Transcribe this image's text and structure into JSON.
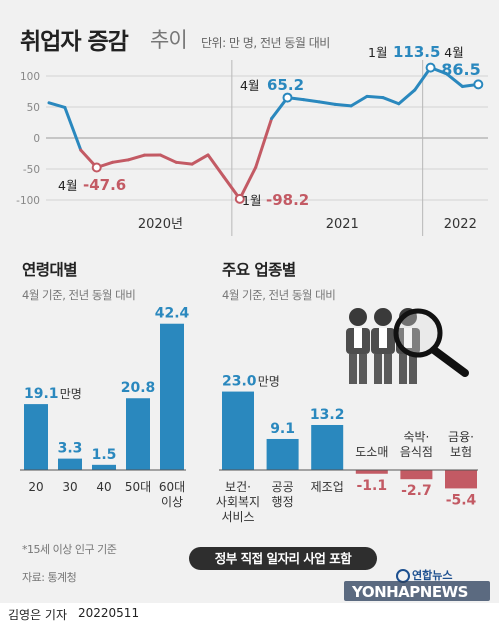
{
  "header": {
    "title": "취업자 증감",
    "title_sub": "추이",
    "unit": "단위: 만 명, 전년 동월 대비"
  },
  "colors": {
    "blue": "#2a88be",
    "red": "#c35a64",
    "neutral": "#2e2e2e"
  },
  "chart_data": [
    {
      "type": "line",
      "x": [
        "2020-01",
        "2020-02",
        "2020-03",
        "2020-04",
        "2020-05",
        "2020-06",
        "2020-07",
        "2020-08",
        "2020-09",
        "2020-10",
        "2020-11",
        "2020-12",
        "2021-01",
        "2021-02",
        "2021-03",
        "2021-04",
        "2021-05",
        "2021-06",
        "2021-07",
        "2021-08",
        "2021-09",
        "2021-10",
        "2021-11",
        "2021-12",
        "2022-01",
        "2022-02",
        "2022-03",
        "2022-04"
      ],
      "series": [
        {
          "values": [
            56.8,
            49.2,
            -19.5,
            -47.6,
            -39.2,
            -35.2,
            -27.7,
            -27.4,
            -39.2,
            -42.1,
            -27.3,
            -62.8,
            -98.2,
            -47.3,
            31.4,
            65.2,
            61.9,
            58.2,
            54.2,
            51.8,
            67.1,
            65.2,
            55.3,
            77.3,
            113.5,
            103.7,
            83.1,
            86.5
          ]
        }
      ],
      "y_ticks": [
        100,
        50,
        0,
        -50,
        -100
      ],
      "ylim": [
        -100,
        120
      ],
      "year_labels": [
        "2020년",
        "2021",
        "2022"
      ],
      "annotations": [
        {
          "month": "4월",
          "value": "-47.6"
        },
        {
          "month": "1월",
          "value": "-98.2"
        },
        {
          "month": "4월",
          "value": "65.2"
        },
        {
          "month": "1월",
          "value": "113.5"
        },
        {
          "month": "4월",
          "value": "86.5"
        }
      ]
    },
    {
      "type": "bar",
      "title": "연령대별",
      "subtitle": "4월 기준, 전년 동월 대비",
      "categories": [
        "20",
        "30",
        "40",
        "50대",
        "60대\n이상"
      ],
      "values": [
        19.1,
        3.3,
        1.5,
        20.8,
        42.4
      ],
      "value_labels": [
        "19.1",
        "3.3",
        "1.5",
        "20.8",
        "42.4"
      ],
      "unit": "만명"
    },
    {
      "type": "bar",
      "title": "주요 업종별",
      "subtitle": "4월 기준, 전년 동월 대비",
      "categories": [
        "보건·\n사회복지\n서비스",
        "공공\n행정",
        "제조업",
        "도소매",
        "숙박·\n음식점",
        "금융·\n보험"
      ],
      "values": [
        23.0,
        9.1,
        13.2,
        -1.1,
        -2.7,
        -5.4
      ],
      "value_labels": [
        "23.0",
        "9.1",
        "13.2",
        "-1.1",
        "-2.7",
        "-5.4"
      ],
      "unit": "만명"
    }
  ],
  "pill": "정부 직접 일자리 사업 포함",
  "footnote": "*15세 이상 인구 기준",
  "source": "자료: 통계청",
  "logo": {
    "korean": "연합뉴스",
    "english": "YONHAPNEWS"
  },
  "byline": "김영은 기자",
  "date": "20220511"
}
